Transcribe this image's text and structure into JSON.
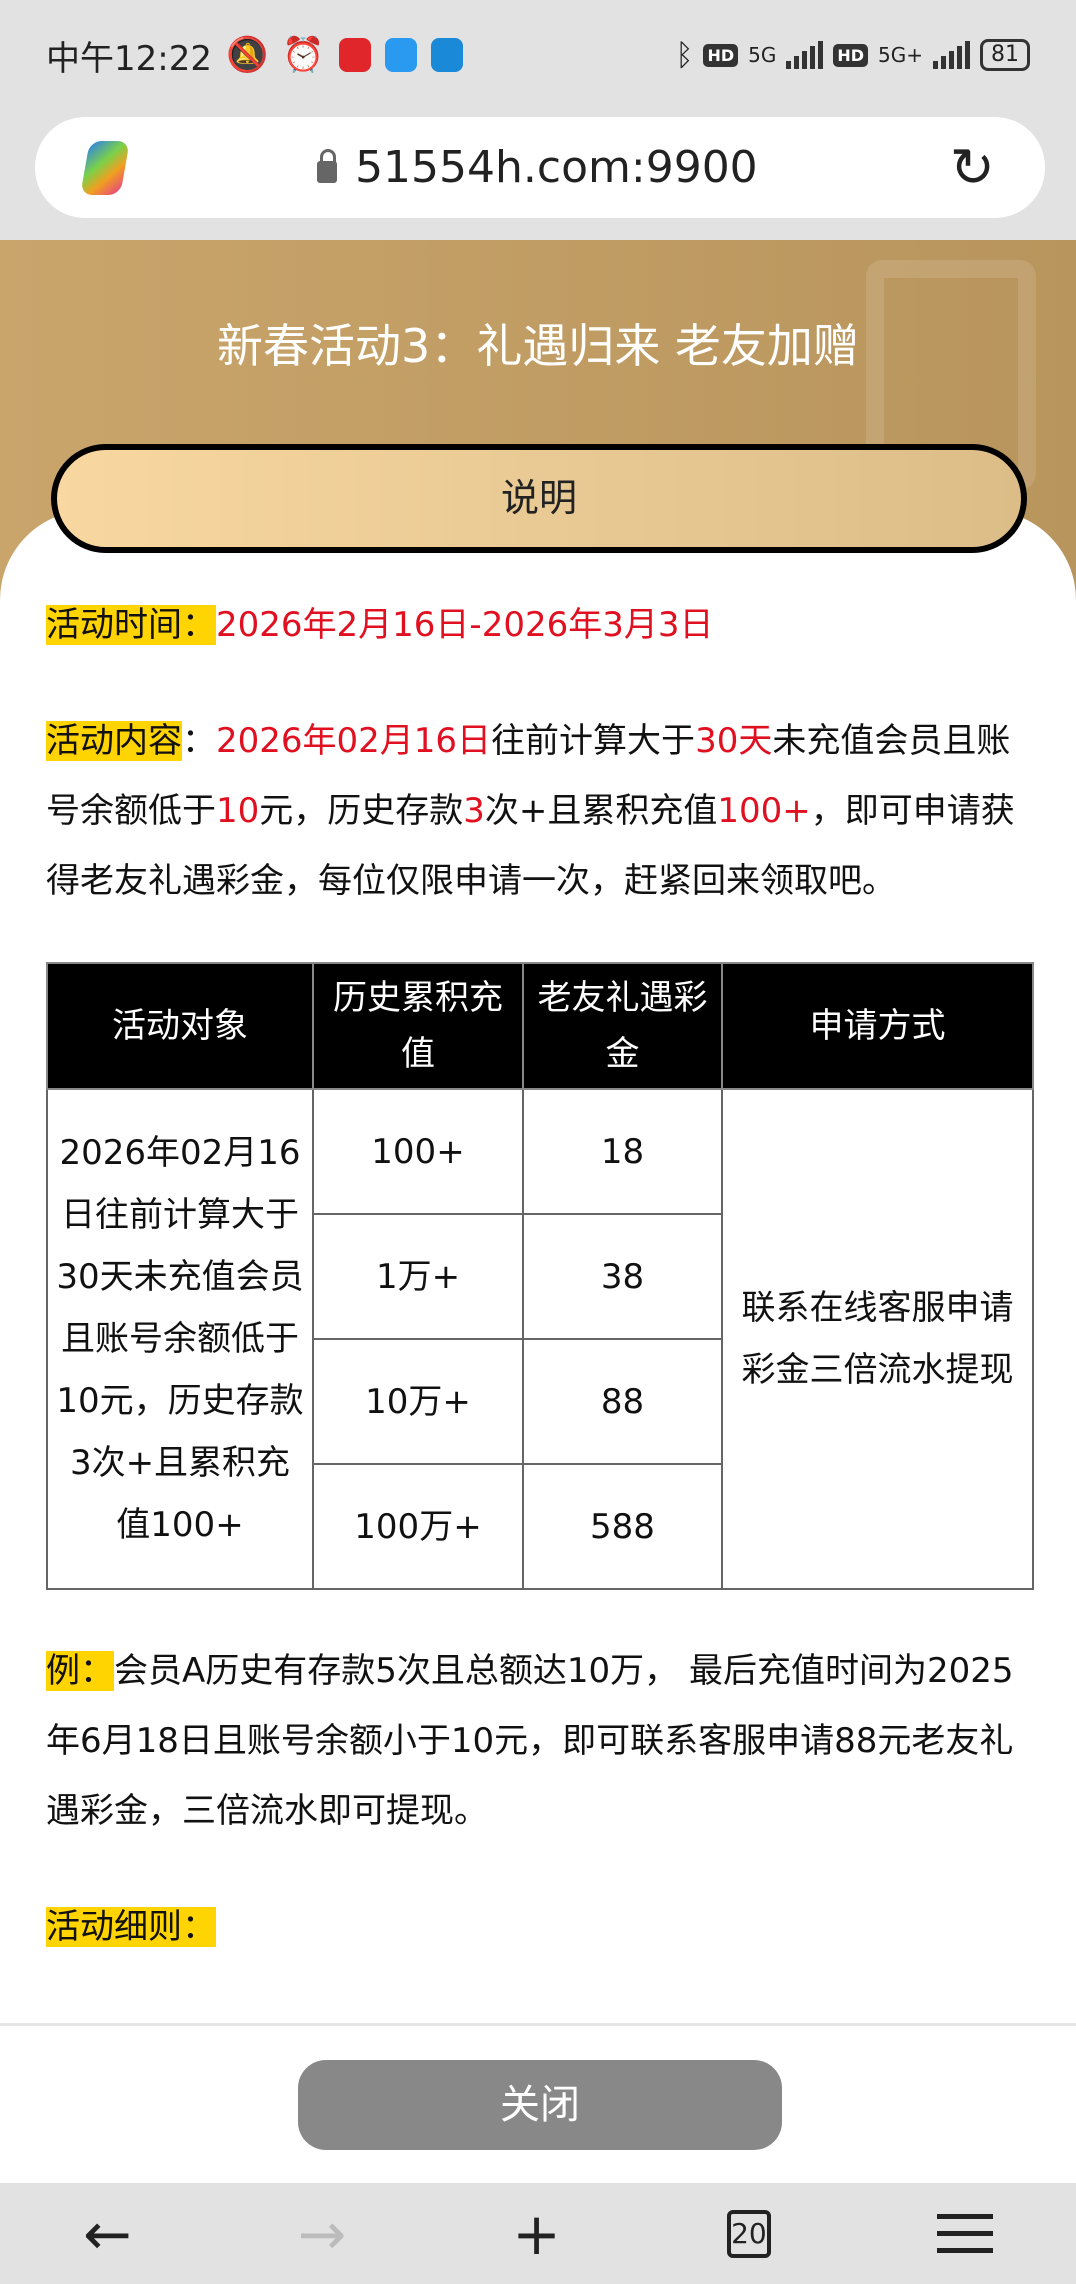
{
  "status_bar": {
    "time": "中午12:22",
    "network1": "5G",
    "network2": "5G+",
    "hd": "HD",
    "battery": "81"
  },
  "browser": {
    "url": "51554h.com:9900",
    "tab_count": "20"
  },
  "header": {
    "title": "新春活动3：礼遇归来 老友加赠",
    "explain_button": "说明"
  },
  "content": {
    "time_label": "活动时间：",
    "time_value": "2026年2月16日-2026年3月3日",
    "content_label": "活动内容",
    "content_parts": [
      "：",
      "2026年02月16日",
      "往前计算大于",
      "30天",
      "未充值会员且账号余额低于",
      "10",
      "元，历史存款",
      "3",
      "次+且累积充值",
      "100+",
      "，即可申请获得老友礼遇彩金，每位仅限申请一次，赶紧回来领取吧。"
    ],
    "table": {
      "headers": [
        "活动对象",
        "历史累积充值",
        "老友礼遇彩金",
        "申请方式"
      ],
      "target": "2026年02月16日往前计算大于30天未充值会员且账号余额低于10元，历史存款3次+且累积充值100+",
      "rows": [
        [
          "100+",
          "18"
        ],
        [
          "1万+",
          "38"
        ],
        [
          "10万+",
          "88"
        ],
        [
          "100万+",
          "588"
        ]
      ],
      "method": "联系在线客服申请彩金三倍流水提现"
    },
    "example_label": "例：",
    "example_text": "会员A历史有存款5次且总额达10万， 最后充值时间为2025年6月18日且账号余额小于10元，即可联系客服申请88元老友礼遇彩金，三倍流水即可提现。",
    "rules_label": "活动细则："
  },
  "footer": {
    "close_button": "关闭"
  },
  "colors": {
    "gold": "#c9a56c",
    "highlight": "#ffd400",
    "red": "#e01020",
    "close": "#888888"
  }
}
